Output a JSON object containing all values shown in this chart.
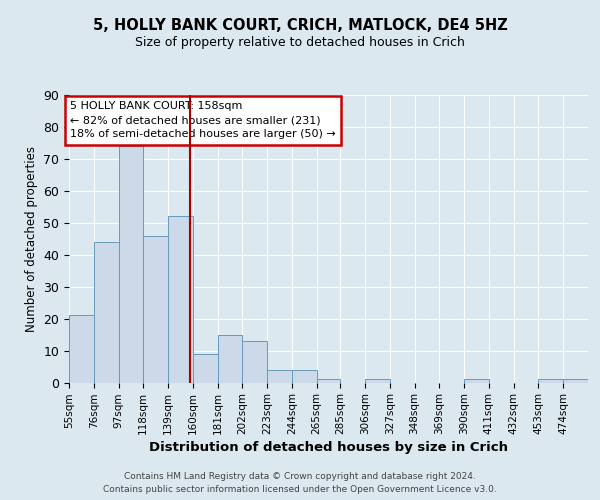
{
  "title1": "5, HOLLY BANK COURT, CRICH, MATLOCK, DE4 5HZ",
  "title2": "Size of property relative to detached houses in Crich",
  "xlabel": "Distribution of detached houses by size in Crich",
  "ylabel": "Number of detached properties",
  "bin_labels": [
    "55sqm",
    "76sqm",
    "97sqm",
    "118sqm",
    "139sqm",
    "160sqm",
    "181sqm",
    "202sqm",
    "223sqm",
    "244sqm",
    "265sqm",
    "285sqm",
    "306sqm",
    "327sqm",
    "348sqm",
    "369sqm",
    "390sqm",
    "411sqm",
    "432sqm",
    "453sqm",
    "474sqm"
  ],
  "bin_edges": [
    55,
    76,
    97,
    118,
    139,
    160,
    181,
    202,
    223,
    244,
    265,
    285,
    306,
    327,
    348,
    369,
    390,
    411,
    432,
    453,
    474,
    495
  ],
  "counts": [
    21,
    44,
    74,
    46,
    52,
    9,
    15,
    13,
    4,
    4,
    1,
    0,
    1,
    0,
    0,
    0,
    1,
    0,
    0,
    1,
    1
  ],
  "reference_line": 158,
  "annotation_title": "5 HOLLY BANK COURT: 158sqm",
  "annotation_line1": "← 82% of detached houses are smaller (231)",
  "annotation_line2": "18% of semi-detached houses are larger (50) →",
  "bar_color": "#ccd9e8",
  "bar_edge_color": "#6699bb",
  "ref_line_color": "#aa0000",
  "annotation_box_color": "#cc0000",
  "background_color": "#dce8f0",
  "plot_bg_color": "#dce8f0",
  "grid_color": "#ffffff",
  "ylim": [
    0,
    90
  ],
  "yticks": [
    0,
    10,
    20,
    30,
    40,
    50,
    60,
    70,
    80,
    90
  ],
  "footer1": "Contains HM Land Registry data © Crown copyright and database right 2024.",
  "footer2": "Contains public sector information licensed under the Open Government Licence v3.0."
}
